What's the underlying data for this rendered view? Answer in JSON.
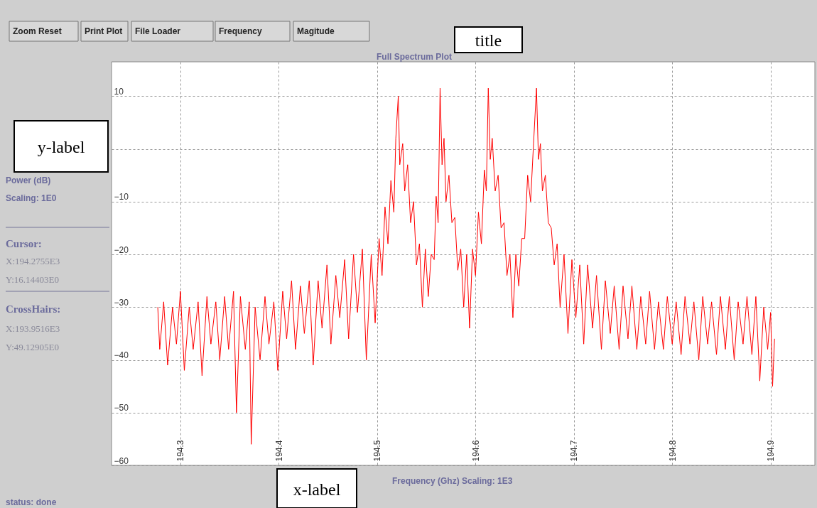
{
  "chart_data": {
    "type": "line",
    "title": "Full Spectrum Plot",
    "xlabel": "Frequency (Ghz)  Scaling: 1E3",
    "annotations": [
      "Zoom Reset",
      "Print Plot",
      "File Loader",
      "Frequency",
      "Magitude",
      "title",
      "y-label",
      "x-label",
      "Power (dB)",
      "Scaling: 1E0",
      "Cursor:",
      "X:194.2755E3",
      "Y:16.14403E0",
      "CrossHairs:",
      "X:193.9516E3",
      "Y:49.12905E0",
      "status: done"
    ],
    "xlim": [
      194.23,
      194.945
    ],
    "xticks": [
      194.3,
      194.4,
      194.5,
      194.6,
      194.7,
      194.8,
      194.9
    ],
    "ylim": [
      -60,
      16.5
    ],
    "yticks": [
      10,
      {
        "value": 0,
        "label": null
      },
      -10,
      -20,
      -30,
      -40,
      -50,
      -60
    ],
    "grid": true,
    "marker": "none",
    "line_style": "solid",
    "series": [
      {
        "color": "#ff0000",
        "x": [
          194.277,
          194.279,
          194.283,
          194.287,
          194.292,
          194.296,
          194.3,
          194.304,
          194.309,
          194.313,
          194.318,
          194.322,
          194.327,
          194.331,
          194.336,
          194.34,
          194.345,
          194.349,
          194.354,
          194.357,
          194.361,
          194.366,
          194.37,
          194.372,
          194.376,
          194.381,
          194.386,
          194.39,
          194.395,
          194.399,
          194.404,
          194.408,
          194.413,
          194.417,
          194.422,
          194.426,
          194.431,
          194.435,
          194.44,
          194.444,
          194.449,
          194.453,
          194.458,
          194.462,
          194.467,
          194.471,
          194.476,
          194.48,
          194.485,
          194.489,
          194.494,
          194.498,
          194.502,
          194.505,
          194.508,
          194.511,
          194.514,
          194.517,
          194.519,
          194.5215,
          194.523,
          194.526,
          194.528,
          194.531,
          194.534,
          194.537,
          194.54,
          194.543,
          194.546,
          194.549,
          194.552,
          194.555,
          194.558,
          194.56,
          194.562,
          194.564,
          194.566,
          194.568,
          194.57,
          194.573,
          194.576,
          194.579,
          194.582,
          194.585,
          194.588,
          194.591,
          194.594,
          194.597,
          194.6,
          194.603,
          194.606,
          194.609,
          194.611,
          194.613,
          194.615,
          194.617,
          194.62,
          194.623,
          194.626,
          194.629,
          194.632,
          194.635,
          194.638,
          194.641,
          194.644,
          194.647,
          194.65,
          194.653,
          194.656,
          194.659,
          194.662,
          194.664,
          194.666,
          194.668,
          194.671,
          194.674,
          194.677,
          194.68,
          194.683,
          194.686,
          194.69,
          194.694,
          194.698,
          194.702,
          194.706,
          194.71,
          194.714,
          194.719,
          194.723,
          194.728,
          194.732,
          194.737,
          194.741,
          194.746,
          194.75,
          194.755,
          194.759,
          194.764,
          194.768,
          194.773,
          194.777,
          194.782,
          194.786,
          194.791,
          194.795,
          194.8,
          194.804,
          194.809,
          194.813,
          194.818,
          194.822,
          194.827,
          194.831,
          194.836,
          194.84,
          194.845,
          194.849,
          194.854,
          194.858,
          194.863,
          194.867,
          194.872,
          194.876,
          194.881,
          194.885,
          194.889,
          194.893,
          194.897,
          194.9,
          194.902,
          194.904
        ],
        "values": [
          -30,
          -38,
          -29,
          -41,
          -30,
          -37,
          -27,
          -42,
          -30,
          -38,
          -29,
          -43,
          -28,
          -37,
          -29,
          -40,
          -28,
          -38,
          -27,
          -50,
          -28,
          -38,
          -29,
          -56,
          -30,
          -40,
          -28,
          -37,
          -29,
          -42,
          -27,
          -36,
          -25,
          -38,
          -26,
          -35,
          -25,
          -41,
          -25,
          -34,
          -22,
          -37,
          -24,
          -32,
          -21,
          -36,
          -20,
          -31,
          -19,
          -40,
          -20,
          -33,
          -17,
          -24,
          -11,
          -18,
          -6,
          -12,
          2,
          10,
          -3,
          1,
          -8,
          -3,
          -14,
          -10,
          -22,
          -18,
          -30,
          -19,
          -28,
          -20,
          -21,
          -9,
          -14,
          11.5,
          -3,
          2,
          -10,
          -5,
          -14,
          -13,
          -23,
          -19,
          -30,
          -20,
          -34,
          -19,
          -24,
          -12,
          -18,
          -4,
          -8,
          11.5,
          -2,
          2,
          -8,
          -5,
          -15,
          -14,
          -24,
          -20,
          -32,
          -20,
          -26,
          -17,
          -17,
          -5,
          -10,
          1,
          11.5,
          -2,
          1,
          -8,
          -5,
          -14,
          -15,
          -22,
          -18,
          -30,
          -20,
          -35,
          -21,
          -32,
          -22,
          -37,
          -22,
          -34,
          -24,
          -38,
          -25,
          -35,
          -26,
          -38,
          -26,
          -36,
          -26,
          -38,
          -28,
          -37,
          -27,
          -38,
          -29,
          -38,
          -28,
          -37,
          -29,
          -39,
          -28,
          -37,
          -29,
          -40,
          -28,
          -37,
          -29,
          -39,
          -28,
          -38,
          -28,
          -40,
          -29,
          -37,
          -28,
          -39,
          -28,
          -44,
          -30,
          -38,
          -31,
          -45,
          -36
        ]
      }
    ]
  }
}
